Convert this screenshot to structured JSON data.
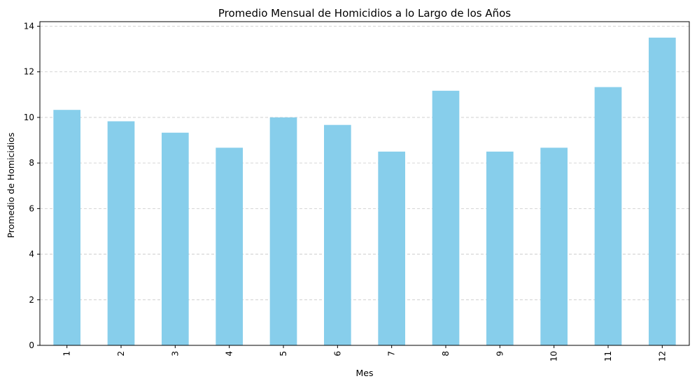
{
  "chart_data": {
    "type": "bar",
    "title": "Promedio Mensual de Homicidios a lo Largo de los Años",
    "xlabel": "Mes",
    "ylabel": "Promedio de Homicidios",
    "categories": [
      "1",
      "2",
      "3",
      "4",
      "5",
      "6",
      "7",
      "8",
      "9",
      "10",
      "11",
      "12"
    ],
    "values": [
      10.33,
      9.83,
      9.33,
      8.67,
      10.0,
      9.67,
      8.5,
      11.17,
      8.5,
      8.67,
      11.33,
      13.5
    ],
    "ylim": [
      0,
      14.2
    ],
    "yticks": [
      "0",
      "2",
      "4",
      "6",
      "8",
      "10",
      "12",
      "14"
    ],
    "ytick_values": [
      0,
      2,
      4,
      6,
      8,
      10,
      12,
      14
    ],
    "grid": "y-dashed",
    "x_tick_rotation": "vertical",
    "colors": {
      "bar": "#87ceeb",
      "grid": "#c8c8c8",
      "axis": "#000000"
    }
  }
}
